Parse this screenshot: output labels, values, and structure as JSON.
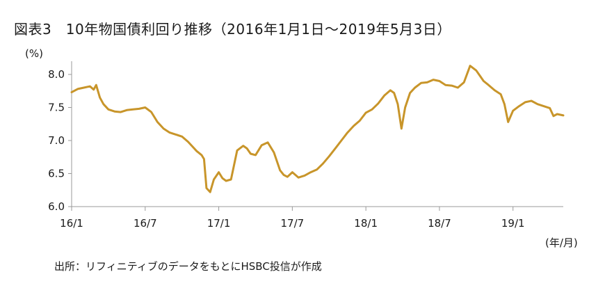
{
  "title": "図表3　10年物国債利回り推移（2016年1月1日～2019年5月3日）",
  "y_unit": "(%)",
  "x_unit": "(年/月)",
  "source": "出所：リフィニティブのデータをもとにHSBC投信が作成",
  "colors": {
    "line": "#c8952a",
    "axis": "#9a9a9a",
    "text": "#1a1a1a"
  },
  "chart_data": {
    "type": "line",
    "title": "図表3　10年物国債利回り推移（2016年1月1日～2019年5月3日）",
    "xlabel": "(年/月)",
    "ylabel": "(%)",
    "ylim": [
      6.0,
      8.2
    ],
    "yticks": [
      "6.0",
      "6.5",
      "7.0",
      "7.5",
      "8.0"
    ],
    "ytick_values": [
      6.0,
      6.5,
      7.0,
      7.5,
      8.0
    ],
    "xlim": [
      0,
      40.1
    ],
    "xticks": [
      "16/1",
      "16/7",
      "17/1",
      "17/7",
      "18/1",
      "18/7",
      "19/1"
    ],
    "xtick_values": [
      0,
      6,
      12,
      18,
      24,
      30,
      36
    ],
    "grid": false,
    "series": [
      {
        "x": [
          0,
          0.5,
          1,
          1.5,
          1.8,
          2,
          2.3,
          2.6,
          3,
          3.5,
          4,
          4.5,
          5,
          5.5,
          6,
          6.5,
          7,
          7.5,
          8,
          8.5,
          9,
          9.5,
          10,
          10.2,
          10.4,
          10.6,
          10.8,
          11,
          11.3,
          11.6,
          12,
          12.3,
          12.6,
          13,
          13.5,
          14,
          14.3,
          14.6,
          15,
          15.5,
          16,
          16.5,
          17,
          17.3,
          17.6,
          18,
          18.5,
          19,
          19.5,
          20,
          20.5,
          21,
          21.5,
          22,
          22.5,
          23,
          23.5,
          24,
          24.5,
          25,
          25.5,
          26,
          26.3,
          26.6,
          26.9,
          27.2,
          27.6,
          28,
          28.5,
          29,
          29.5,
          30,
          30.5,
          31,
          31.5,
          32,
          32.5,
          33,
          33.3,
          33.6,
          34,
          34.5,
          35,
          35.3,
          35.6,
          36,
          36.5,
          37,
          37.5,
          38,
          38.5,
          39,
          39.3,
          39.6,
          40.1
        ],
        "values": [
          7.73,
          7.78,
          7.8,
          7.82,
          7.77,
          7.84,
          7.65,
          7.55,
          7.47,
          7.44,
          7.43,
          7.46,
          7.47,
          7.48,
          7.5,
          7.43,
          7.28,
          7.18,
          7.12,
          7.09,
          7.06,
          6.98,
          6.88,
          6.84,
          6.81,
          6.78,
          6.72,
          6.28,
          6.22,
          6.41,
          6.52,
          6.43,
          6.39,
          6.41,
          6.85,
          6.92,
          6.88,
          6.8,
          6.78,
          6.93,
          6.97,
          6.82,
          6.55,
          6.48,
          6.45,
          6.52,
          6.44,
          6.47,
          6.52,
          6.56,
          6.65,
          6.76,
          6.88,
          7.0,
          7.12,
          7.22,
          7.3,
          7.42,
          7.47,
          7.56,
          7.68,
          7.76,
          7.72,
          7.55,
          7.18,
          7.5,
          7.72,
          7.8,
          7.87,
          7.88,
          7.92,
          7.9,
          7.84,
          7.83,
          7.8,
          7.88,
          8.13,
          8.06,
          7.98,
          7.9,
          7.84,
          7.76,
          7.7,
          7.55,
          7.28,
          7.45,
          7.52,
          7.58,
          7.6,
          7.55,
          7.52,
          7.49,
          7.37,
          7.4,
          7.38
        ]
      }
    ]
  }
}
